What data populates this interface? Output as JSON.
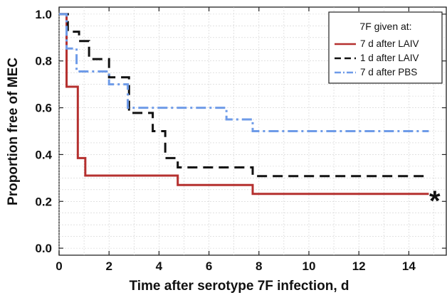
{
  "chart_data": {
    "type": "line",
    "step": true,
    "title": "",
    "xlabel": "Time after serotype 7F infection, d",
    "ylabel": "Proportion free of MEC",
    "xlim": [
      0,
      15.5
    ],
    "ylim": [
      -0.03,
      1.03
    ],
    "xticks": [
      0,
      2,
      4,
      6,
      8,
      10,
      12,
      14
    ],
    "yticks": [
      0.0,
      0.2,
      0.4,
      0.6,
      0.8,
      1.0
    ],
    "ytick_labels": [
      "0.0",
      "0.2",
      "0.4",
      "0.6",
      "0.8",
      "1.0"
    ],
    "grid": true,
    "legend": {
      "title": "7F given at:",
      "placement": "top-right"
    },
    "annotation": "*",
    "series": [
      {
        "name": "7 d after LAIV",
        "color": "#b5302f",
        "dash": "solid",
        "steps": [
          [
            0,
            1.0
          ],
          [
            0.3,
            0.69
          ],
          [
            0.75,
            0.385
          ],
          [
            1.05,
            0.31
          ],
          [
            4.75,
            0.27
          ],
          [
            7.75,
            0.232
          ],
          [
            14.8,
            0.232
          ]
        ]
      },
      {
        "name": "1 d after LAIV",
        "color": "#111111",
        "dash": "dash",
        "steps": [
          [
            0,
            1.0
          ],
          [
            0.35,
            0.925
          ],
          [
            0.8,
            0.885
          ],
          [
            1.2,
            0.808
          ],
          [
            2.0,
            0.73
          ],
          [
            2.8,
            0.578
          ],
          [
            3.75,
            0.5
          ],
          [
            4.25,
            0.385
          ],
          [
            4.75,
            0.345
          ],
          [
            7.75,
            0.308
          ],
          [
            14.8,
            0.308
          ]
        ]
      },
      {
        "name": "7 d after PBS",
        "color": "#6e9be8",
        "dash": "dashdot",
        "steps": [
          [
            0,
            1.0
          ],
          [
            0.3,
            0.853
          ],
          [
            0.7,
            0.755
          ],
          [
            2.0,
            0.7
          ],
          [
            2.75,
            0.6
          ],
          [
            6.7,
            0.55
          ],
          [
            7.75,
            0.5
          ],
          [
            14.8,
            0.5
          ]
        ]
      }
    ]
  }
}
